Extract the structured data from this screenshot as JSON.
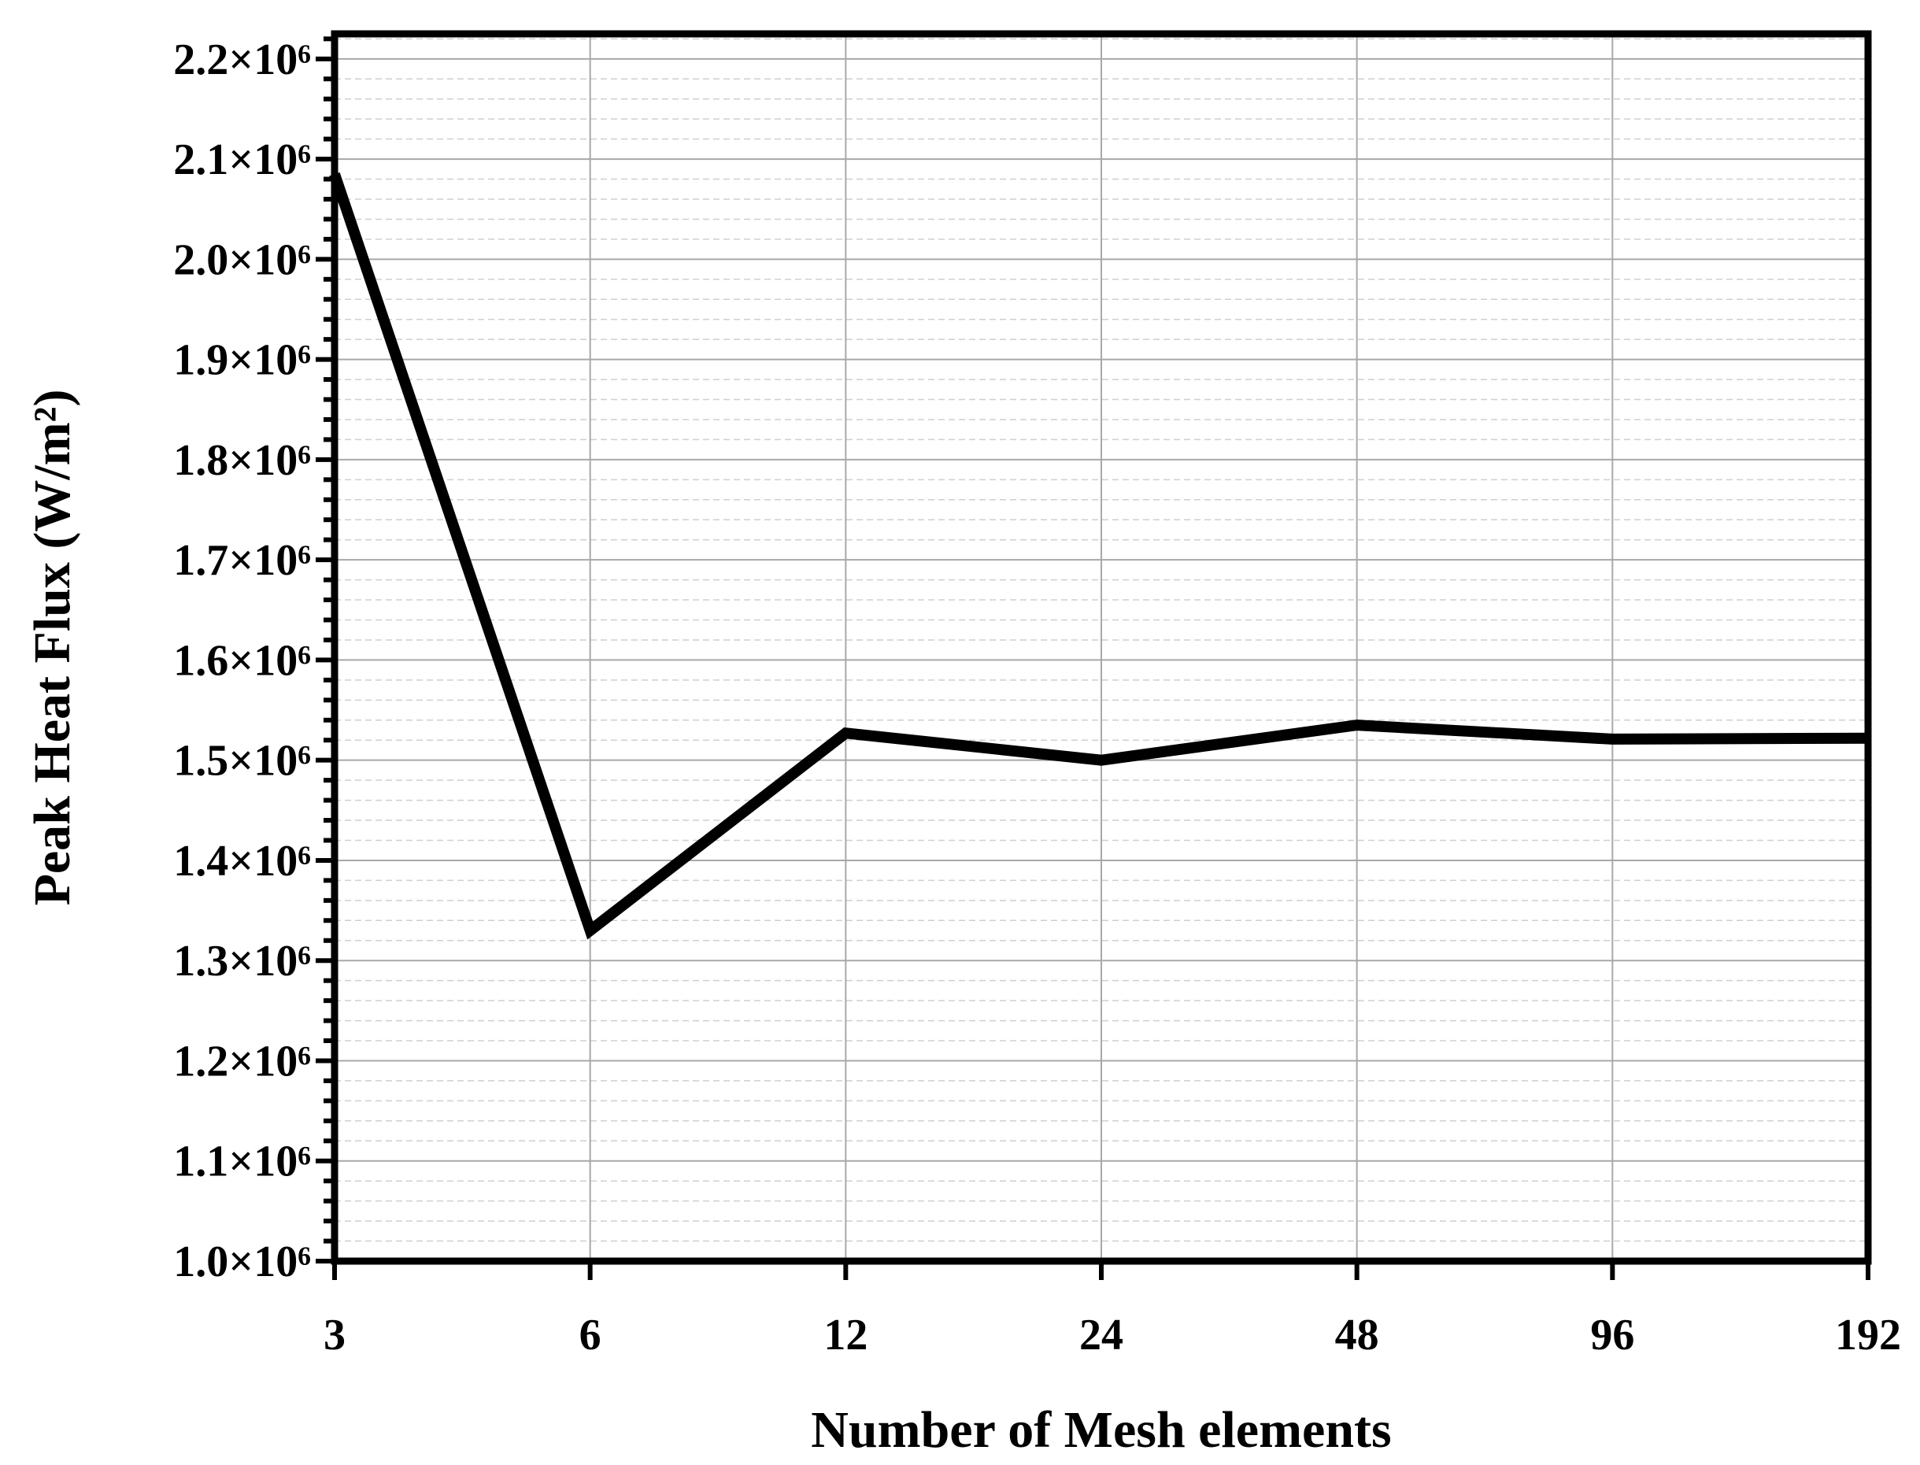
{
  "chart_data": {
    "type": "line",
    "xlabel": "Number of Mesh elements",
    "ylabel": "Peak Heat Flux (W/m²)",
    "x_scale": "log2",
    "x": [
      3,
      6,
      12,
      24,
      48,
      96,
      192
    ],
    "x_tick_labels": [
      "3",
      "6",
      "12",
      "24",
      "48",
      "96",
      "192"
    ],
    "y_tick_labels": [
      "1.0×10⁶",
      "1.1×10⁶",
      "1.2×10⁶",
      "1.3×10⁶",
      "1.4×10⁶",
      "1.5×10⁶",
      "1.6×10⁶",
      "1.7×10⁶",
      "1.8×10⁶",
      "1.9×10⁶",
      "2.0×10⁶",
      "2.1×10⁶",
      "2.2×10⁶"
    ],
    "y_ticks": [
      1000000,
      1100000,
      1200000,
      1300000,
      1400000,
      1500000,
      1600000,
      1700000,
      1800000,
      1900000,
      2000000,
      2100000,
      2200000
    ],
    "ylim": [
      1000000,
      2225000
    ],
    "xlim": [
      3,
      192
    ],
    "series": [
      {
        "values": [
          2085000,
          1330000,
          1527000,
          1500000,
          1535000,
          1521000,
          1522000
        ]
      }
    ],
    "grid": true,
    "minor_grid": true,
    "line_color": "#000000"
  }
}
